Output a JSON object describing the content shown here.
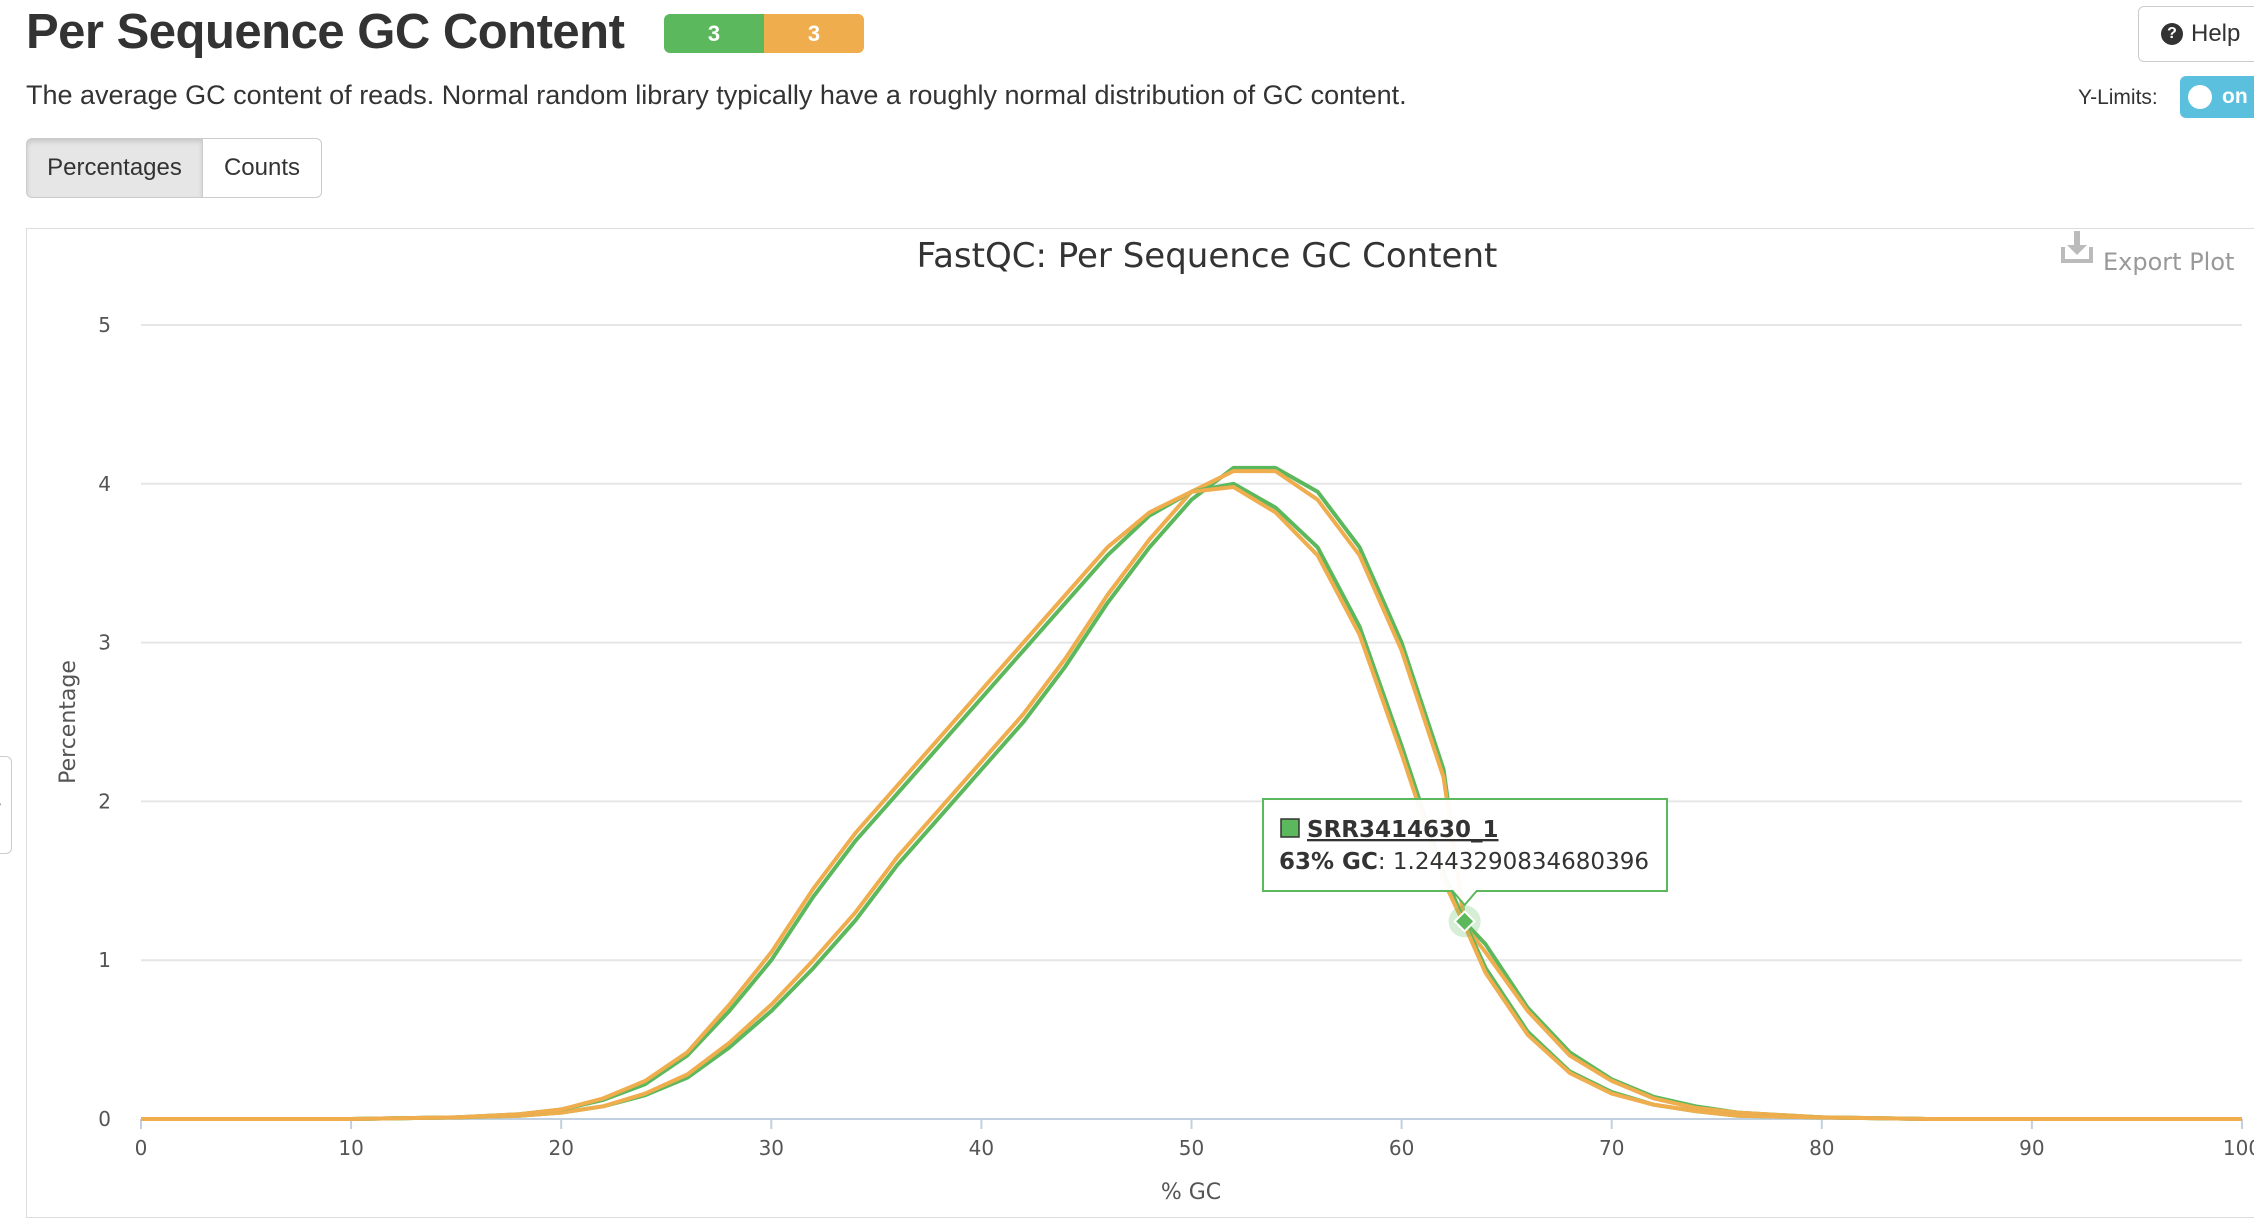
{
  "header": {
    "title": "Per Sequence GC Content",
    "badge_pass": "3",
    "badge_warn": "3",
    "description": "The average GC content of reads. Normal random library typically have a roughly normal distribution of GC content.",
    "help_label": "Help",
    "ylimits_label": "Y-Limits:",
    "ylimits_toggle": "on"
  },
  "buttons": {
    "percentages": "Percentages",
    "counts": "Counts"
  },
  "plot": {
    "export_label": "Export Plot"
  },
  "colors": {
    "pass": "#5cb85c",
    "warn": "#f0ad4e",
    "series_green": "#5cb85c",
    "series_orange": "#f0ad4e",
    "toggle": "#5bc0de"
  },
  "chart_data": {
    "type": "line",
    "title": "FastQC: Per Sequence GC Content",
    "xlabel": "% GC",
    "ylabel": "Percentage",
    "xlim": [
      0,
      100
    ],
    "ylim": [
      0,
      5
    ],
    "xticks": [
      "0",
      "10",
      "20",
      "30",
      "40",
      "50",
      "60",
      "70",
      "80",
      "90",
      "100"
    ],
    "yticks": [
      "0",
      "1",
      "2",
      "3",
      "4",
      "5"
    ],
    "grid": true,
    "x": [
      0,
      10,
      15,
      18,
      20,
      22,
      24,
      26,
      28,
      30,
      32,
      34,
      36,
      38,
      40,
      42,
      44,
      46,
      48,
      50,
      52,
      54,
      56,
      58,
      60,
      62,
      63,
      64,
      66,
      68,
      70,
      72,
      74,
      76,
      80,
      85,
      90,
      100
    ],
    "series": [
      {
        "name": "SRR3414630_1",
        "color": "#5cb85c",
        "values": [
          0,
          0,
          0.01,
          0.02,
          0.04,
          0.08,
          0.15,
          0.26,
          0.45,
          0.68,
          0.95,
          1.25,
          1.6,
          1.9,
          2.2,
          2.5,
          2.85,
          3.25,
          3.6,
          3.9,
          4.1,
          4.1,
          3.95,
          3.6,
          3.0,
          2.2,
          1.24,
          1.1,
          0.7,
          0.42,
          0.25,
          0.14,
          0.08,
          0.04,
          0.01,
          0,
          0,
          0
        ]
      },
      {
        "color": "#f0ad4e",
        "values": [
          0,
          0,
          0.01,
          0.02,
          0.04,
          0.08,
          0.16,
          0.28,
          0.48,
          0.72,
          1.0,
          1.3,
          1.65,
          1.95,
          2.25,
          2.55,
          2.9,
          3.3,
          3.65,
          3.95,
          4.08,
          4.08,
          3.9,
          3.55,
          2.95,
          2.15,
          1.22,
          1.05,
          0.68,
          0.4,
          0.24,
          0.13,
          0.07,
          0.04,
          0.01,
          0,
          0,
          0
        ]
      },
      {
        "color": "#5cb85c",
        "values": [
          0,
          0,
          0.01,
          0.03,
          0.06,
          0.12,
          0.22,
          0.4,
          0.68,
          1.0,
          1.4,
          1.75,
          2.05,
          2.35,
          2.65,
          2.95,
          3.25,
          3.55,
          3.8,
          3.95,
          4.0,
          3.85,
          3.6,
          3.1,
          2.35,
          1.55,
          1.24,
          0.95,
          0.55,
          0.3,
          0.17,
          0.09,
          0.05,
          0.02,
          0.01,
          0,
          0,
          0
        ]
      },
      {
        "color": "#f0ad4e",
        "values": [
          0,
          0,
          0.01,
          0.03,
          0.06,
          0.13,
          0.24,
          0.42,
          0.72,
          1.05,
          1.45,
          1.8,
          2.1,
          2.4,
          2.7,
          3.0,
          3.3,
          3.6,
          3.82,
          3.95,
          3.98,
          3.82,
          3.55,
          3.05,
          2.3,
          1.5,
          1.22,
          0.92,
          0.53,
          0.29,
          0.16,
          0.09,
          0.05,
          0.02,
          0.01,
          0,
          0,
          0
        ]
      }
    ],
    "tooltip": {
      "series": "SRR3414630_1",
      "x_label": "63% GC",
      "y_text": ": 1.2443290834680396",
      "x": 63,
      "y": 1.2443290834680396
    }
  }
}
